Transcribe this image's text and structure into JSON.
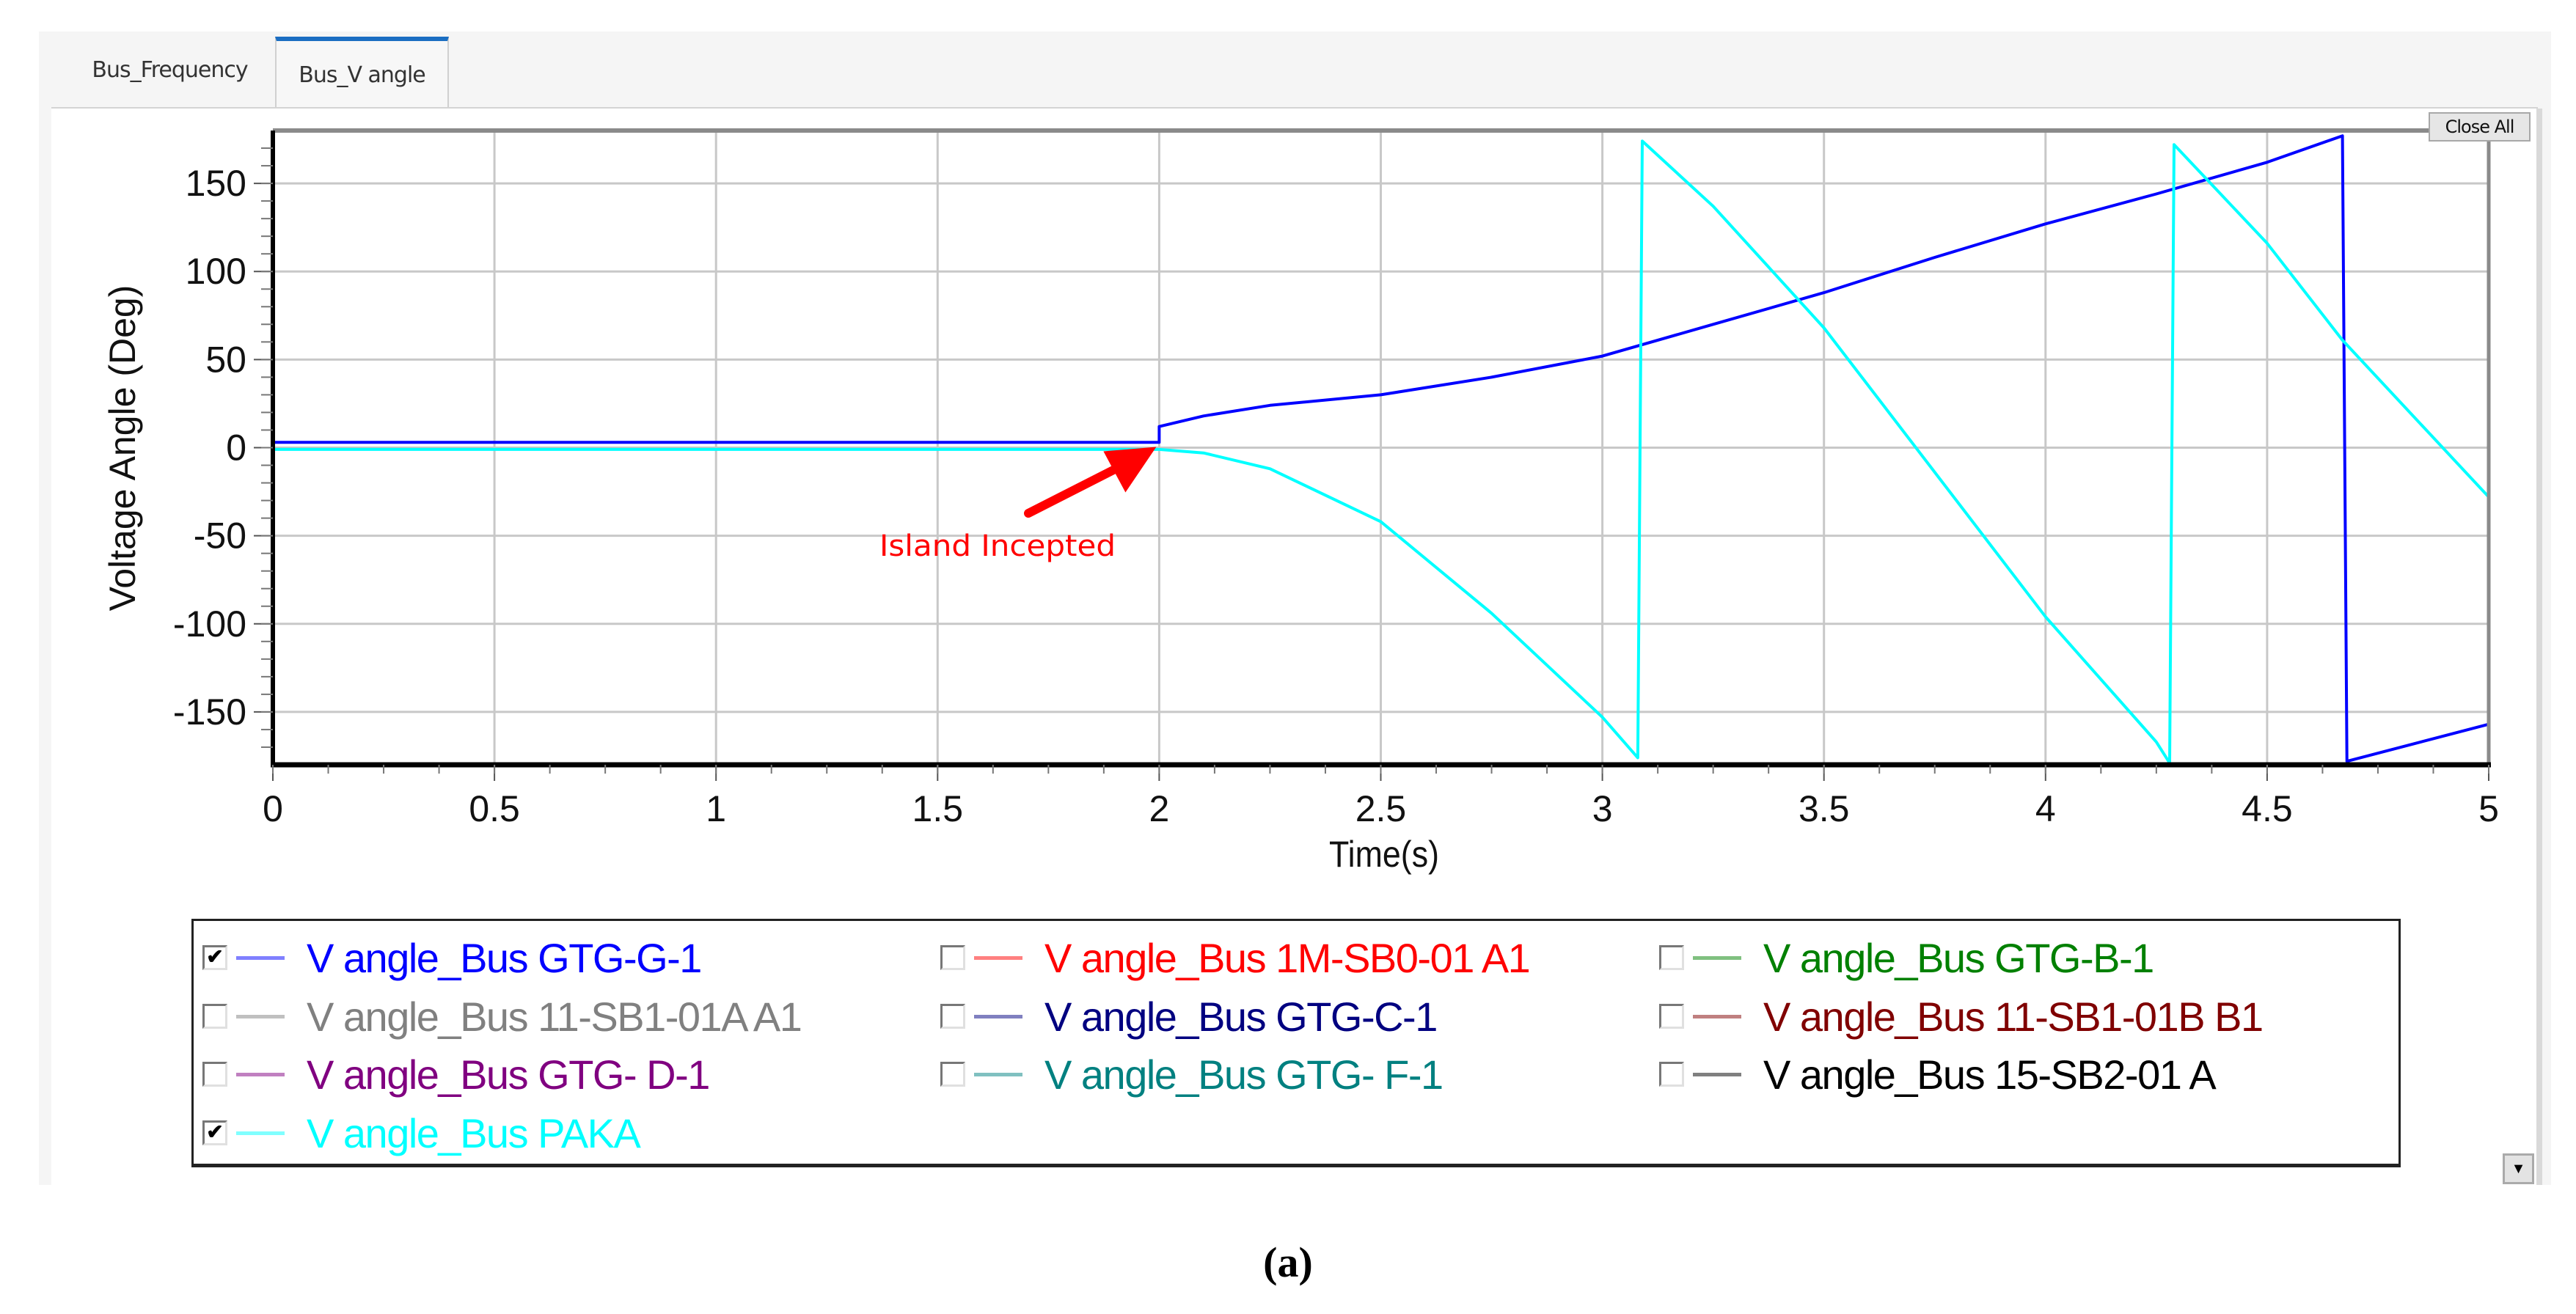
{
  "tabs": [
    {
      "label": "Bus_Frequency",
      "active": false
    },
    {
      "label": "Bus_V angle",
      "active": true
    }
  ],
  "toolbar": {
    "close_all_label": "Close All"
  },
  "annotation": {
    "text": "Island Incepted",
    "color": "#ff0000"
  },
  "legend": {
    "items": [
      {
        "label": "V angle_Bus GTG-G-1",
        "color": "#0000ff",
        "line_color": "#8080ff",
        "checked": true
      },
      {
        "label": "V angle_Bus 1M-SB0-01 A1",
        "color": "#ff0000",
        "line_color": "#ff8080",
        "checked": false
      },
      {
        "label": "V angle_Bus GTG-B-1",
        "color": "#008000",
        "line_color": "#80c080",
        "checked": false
      },
      {
        "label": "V angle_Bus 11-SB1-01A A1",
        "color": "#808080",
        "line_color": "#c0c0c0",
        "checked": false
      },
      {
        "label": "V angle_Bus GTG-C-1",
        "color": "#000080",
        "line_color": "#8080c0",
        "checked": false
      },
      {
        "label": "V angle_Bus 11-SB1-01B B1",
        "color": "#800000",
        "line_color": "#c08080",
        "checked": false
      },
      {
        "label": "V angle_Bus GTG- D-1",
        "color": "#800080",
        "line_color": "#c080c0",
        "checked": false
      },
      {
        "label": "V angle_Bus GTG- F-1",
        "color": "#008080",
        "line_color": "#80c0c0",
        "checked": false
      },
      {
        "label": "V angle_Bus 15-SB2-01 A",
        "color": "#000000",
        "line_color": "#808080",
        "checked": false
      },
      {
        "label": "V angle_Bus PAKA",
        "color": "#00ffff",
        "line_color": "#80ffff",
        "checked": true
      }
    ]
  },
  "caption": "(a)",
  "chart_data": {
    "type": "line",
    "title": "",
    "xlabel": "Time(s)",
    "ylabel": "Voltage Angle (Deg)",
    "xlim": [
      0,
      5
    ],
    "ylim": [
      -180,
      180
    ],
    "grid": true,
    "legend_position": "bottom",
    "x_ticks": [
      "0",
      "0.5",
      "1",
      "1.5",
      "2",
      "2.5",
      "3",
      "3.5",
      "4",
      "4.5",
      "5"
    ],
    "y_ticks": [
      "150",
      "100",
      "50",
      "0",
      "-50",
      "-100",
      "-150"
    ],
    "annotations": [
      {
        "text": "Island Incepted",
        "arrow_to": [
          2.0,
          0
        ],
        "color": "#ff0000"
      }
    ],
    "series": [
      {
        "name": "V angle_Bus GTG-G-1",
        "color": "#0000ff",
        "points": [
          [
            0,
            3
          ],
          [
            2.0,
            3
          ],
          [
            2.0,
            12
          ],
          [
            2.1,
            18
          ],
          [
            2.25,
            24
          ],
          [
            2.5,
            30
          ],
          [
            2.75,
            40
          ],
          [
            3.0,
            52
          ],
          [
            3.25,
            70
          ],
          [
            3.5,
            88
          ],
          [
            3.75,
            108
          ],
          [
            4.0,
            127
          ],
          [
            4.25,
            144
          ],
          [
            4.5,
            162
          ],
          [
            4.67,
            177
          ],
          [
            4.68,
            -178
          ],
          [
            5.0,
            -157
          ]
        ]
      },
      {
        "name": "V angle_Bus PAKA",
        "color": "#00ffff",
        "points": [
          [
            0,
            -1
          ],
          [
            2.0,
            -1
          ],
          [
            2.1,
            -3
          ],
          [
            2.25,
            -12
          ],
          [
            2.5,
            -42
          ],
          [
            2.75,
            -94
          ],
          [
            3.0,
            -153
          ],
          [
            3.08,
            -176
          ],
          [
            3.09,
            174
          ],
          [
            3.25,
            137
          ],
          [
            3.5,
            68
          ],
          [
            3.75,
            -14
          ],
          [
            4.0,
            -96
          ],
          [
            4.25,
            -167
          ],
          [
            4.28,
            -179
          ],
          [
            4.29,
            172
          ],
          [
            4.5,
            116
          ],
          [
            4.67,
            61
          ],
          [
            5.0,
            -28
          ]
        ]
      }
    ]
  }
}
